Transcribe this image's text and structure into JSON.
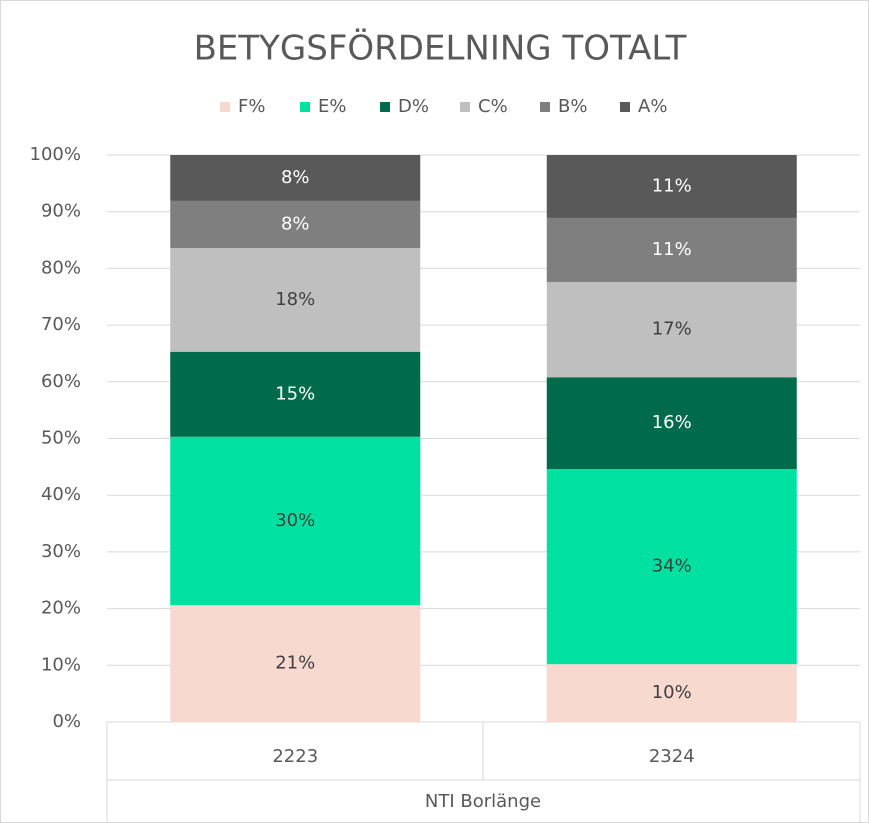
{
  "chart_data": {
    "type": "stacked_bar_100",
    "title": "BETYGSFÖRDELNING TOTALT",
    "categories": [
      "2223",
      "2324"
    ],
    "x_group_label": "NTI Borlänge",
    "series": [
      {
        "name": "F%",
        "color": "#f8d9d0",
        "values": [
          20.6,
          10.2
        ],
        "value_labels": [
          "21%",
          "10%"
        ]
      },
      {
        "name": "E%",
        "color": "#00e0a0",
        "values": [
          29.7,
          34.4
        ],
        "value_labels": [
          "30%",
          "34%"
        ]
      },
      {
        "name": "D%",
        "color": "#006b4a",
        "values": [
          15.0,
          16.2
        ],
        "value_labels": [
          "15%",
          "16%"
        ]
      },
      {
        "name": "C%",
        "color": "#bfbfbf",
        "values": [
          18.3,
          16.8
        ],
        "value_labels": [
          "18%",
          "17%"
        ]
      },
      {
        "name": "B%",
        "color": "#7f7f7f",
        "values": [
          8.3,
          11.3
        ],
        "value_labels": [
          "8%",
          "11%"
        ]
      },
      {
        "name": "A%",
        "color": "#595959",
        "values": [
          8.1,
          11.1
        ],
        "value_labels": [
          "8%",
          "11%"
        ]
      }
    ],
    "ylim": [
      0,
      100
    ],
    "yticks": [
      {
        "value": 0,
        "label": "0%"
      },
      {
        "value": 10,
        "label": "10%"
      },
      {
        "value": 20,
        "label": "20%"
      },
      {
        "value": 30,
        "label": "30%"
      },
      {
        "value": 40,
        "label": "40%"
      },
      {
        "value": 50,
        "label": "50%"
      },
      {
        "value": 60,
        "label": "60%"
      },
      {
        "value": 70,
        "label": "70%"
      },
      {
        "value": 80,
        "label": "80%"
      },
      {
        "value": 90,
        "label": "90%"
      },
      {
        "value": 100,
        "label": "100%"
      }
    ],
    "grid": true,
    "legend": "top"
  }
}
